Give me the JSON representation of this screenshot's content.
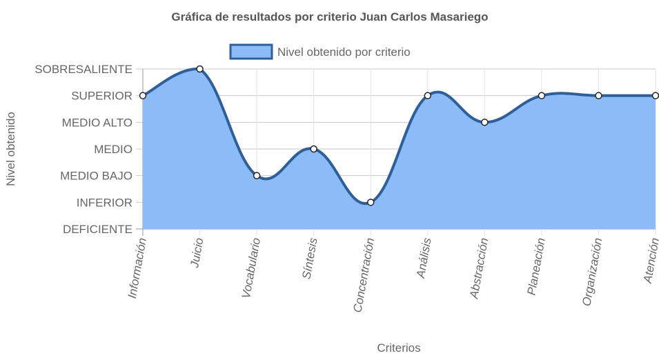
{
  "chart_data": {
    "type": "area",
    "title": "Gráfica de resultados por criterio Juan Carlos Masariego",
    "xlabel": "Criterios",
    "ylabel": "Nivel obtenido",
    "categories": [
      "Información",
      "Juicio",
      "Vocabulario",
      "Síntesis",
      "Concentración",
      "Análisis",
      "Abstracción",
      "Planeación",
      "Organización",
      "Atención"
    ],
    "y_levels": [
      "DEFICIENTE",
      "INFERIOR",
      "MEDIO BAJO",
      "MEDIO",
      "MEDIO ALTO",
      "SUPERIOR",
      "SOBRESALIENTE"
    ],
    "ylim": [
      0,
      6
    ],
    "series": [
      {
        "name": "Nivel obtenido por criterio",
        "values": [
          5,
          6,
          2,
          3,
          1,
          5,
          4,
          5,
          5,
          5
        ],
        "line_color": "#2f5f98",
        "fill_color": "#8bbcf8"
      }
    ],
    "grid": true,
    "legend": "top"
  }
}
